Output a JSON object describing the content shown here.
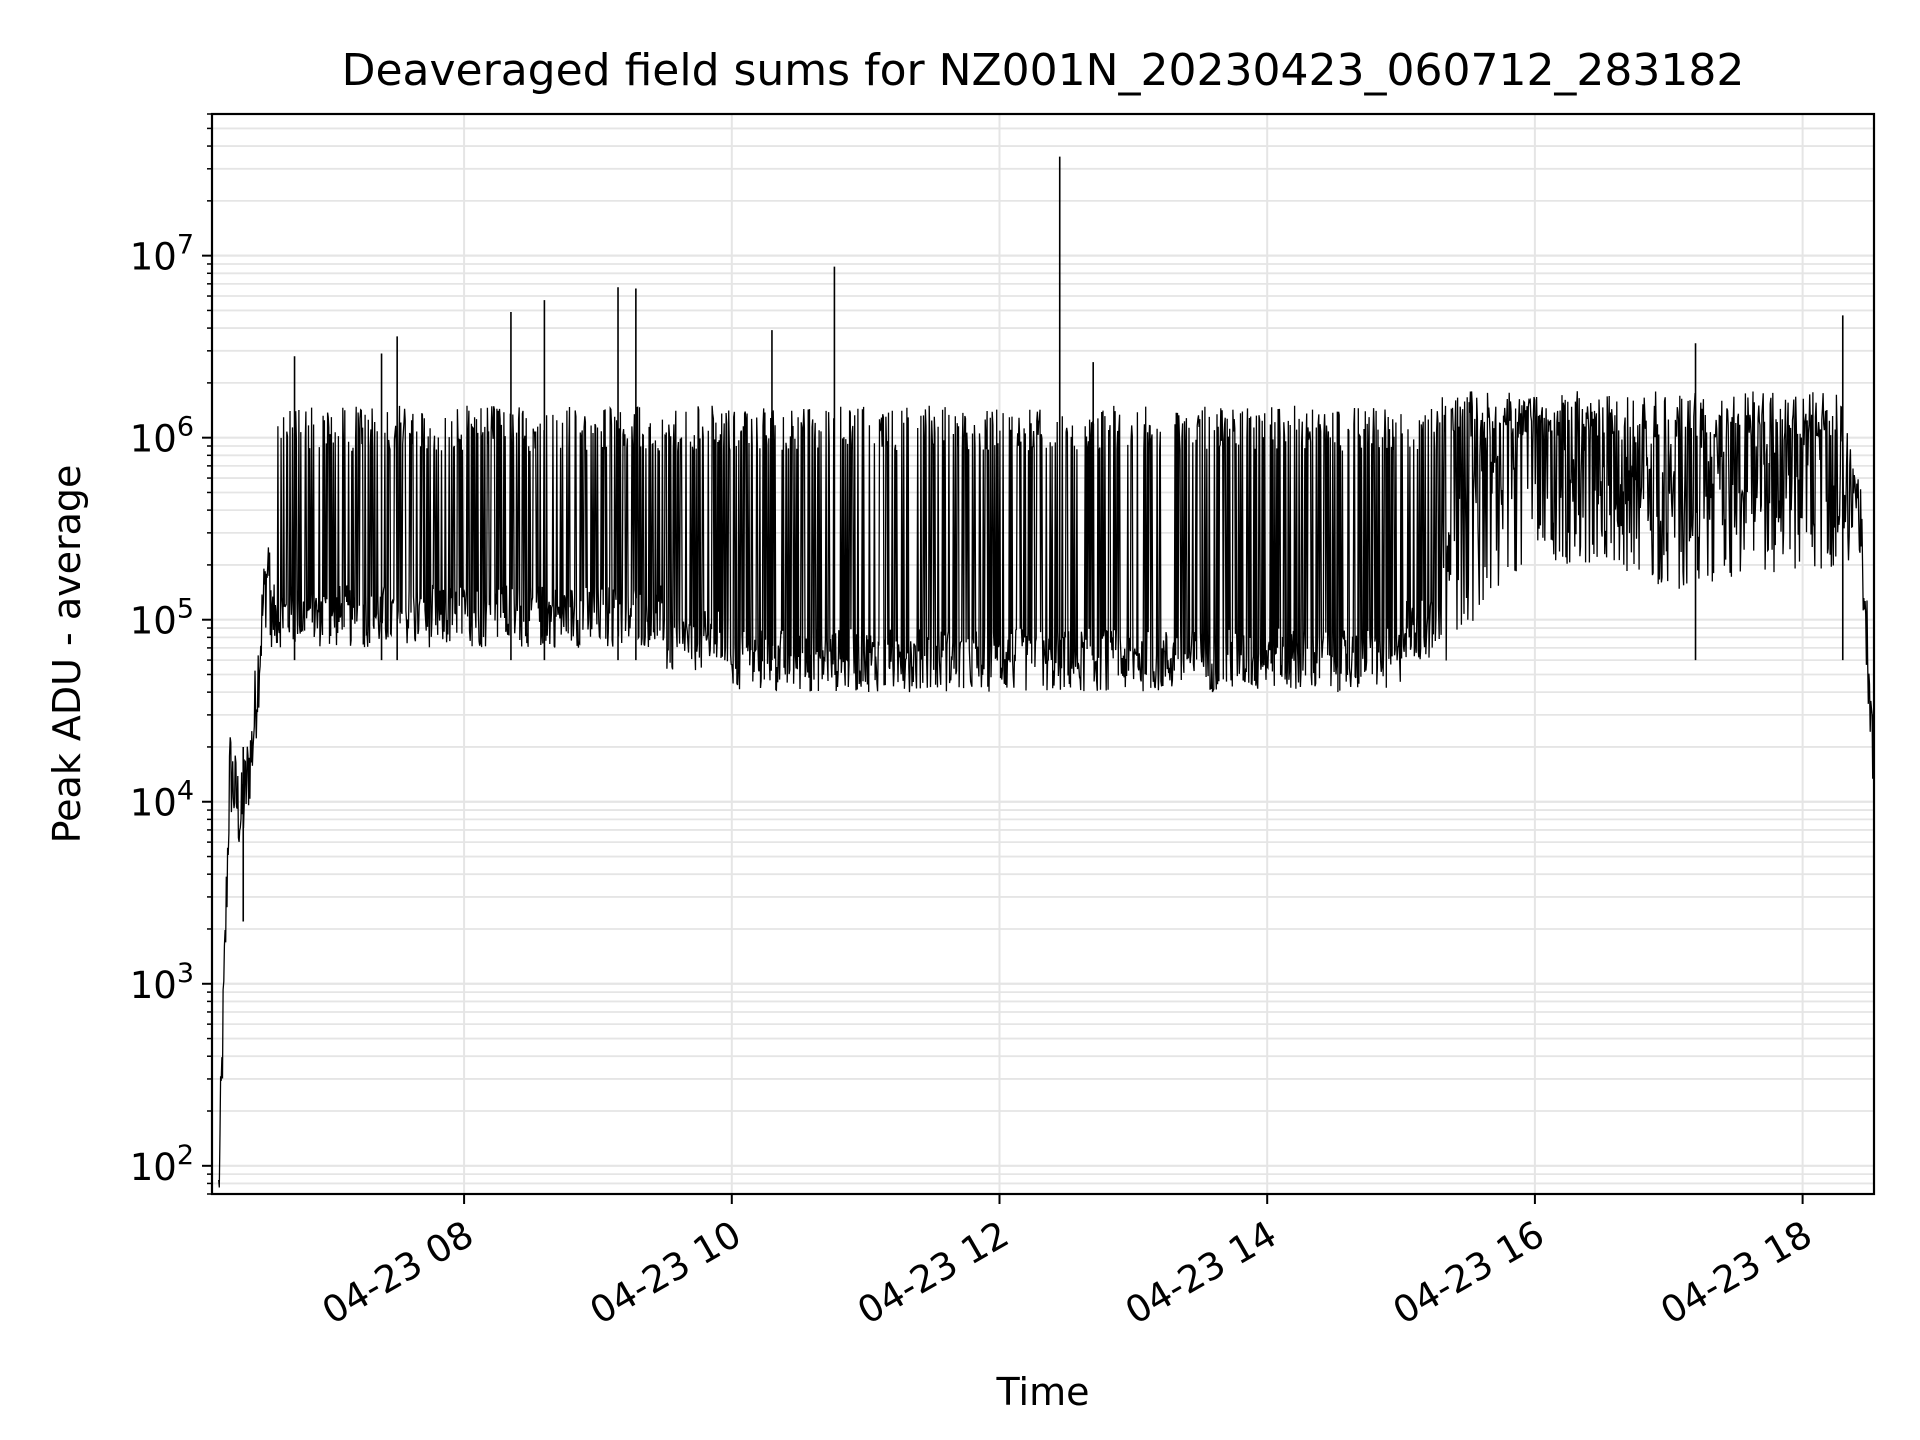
{
  "chart_data": {
    "type": "line",
    "title": "Deaveraged field sums for NZ001N_20230423_060712_283182",
    "xlabel": "Time",
    "ylabel": "Peak ADU - average",
    "yscale": "log",
    "ylim": [
      70,
      60000000
    ],
    "xlim": [
      "2023-04-23 06:07",
      "2023-04-23 18:32"
    ],
    "grid": true,
    "line_color": "#000000",
    "grid_color": "#e5e5e5",
    "x_ticks": [
      {
        "value": "2023-04-23 08:00",
        "label": "04-23 08"
      },
      {
        "value": "2023-04-23 10:00",
        "label": "04-23 10"
      },
      {
        "value": "2023-04-23 12:00",
        "label": "04-23 12"
      },
      {
        "value": "2023-04-23 14:00",
        "label": "04-23 14"
      },
      {
        "value": "2023-04-23 16:00",
        "label": "04-23 16"
      },
      {
        "value": "2023-04-23 18:00",
        "label": "04-23 18"
      }
    ],
    "y_ticks": [
      {
        "value": 100,
        "base": "10",
        "exp": "2"
      },
      {
        "value": 1000,
        "base": "10",
        "exp": "3"
      },
      {
        "value": 10000,
        "base": "10",
        "exp": "4"
      },
      {
        "value": 100000,
        "base": "10",
        "exp": "5"
      },
      {
        "value": 1000000,
        "base": "10",
        "exp": "6"
      },
      {
        "value": 10000000,
        "base": "10",
        "exp": "7"
      }
    ],
    "series": [
      {
        "x": [
          "2023-04-23 06:10",
          "2023-04-23 06:15",
          "2023-04-23 06:20",
          "2023-04-23 06:25",
          "2023-04-23 06:30",
          "2023-04-23 06:35",
          "2023-04-23 06:40",
          "2023-04-23 06:45",
          "2023-04-23 06:50",
          "2023-04-23 06:55",
          "2023-04-23 07:00",
          "2023-04-23 07:15",
          "2023-04-23 07:30",
          "2023-04-23 07:45",
          "2023-04-23 08:00",
          "2023-04-23 08:20",
          "2023-04-23 08:40",
          "2023-04-23 09:00",
          "2023-04-23 09:20",
          "2023-04-23 09:40",
          "2023-04-23 10:00",
          "2023-04-23 10:30",
          "2023-04-23 11:00",
          "2023-04-23 11:30",
          "2023-04-23 12:00",
          "2023-04-23 12:30",
          "2023-04-23 13:00",
          "2023-04-23 13:30",
          "2023-04-23 14:00",
          "2023-04-23 14:30",
          "2023-04-23 15:00",
          "2023-04-23 15:20",
          "2023-04-23 15:40",
          "2023-04-23 16:00",
          "2023-04-23 16:20",
          "2023-04-23 16:40",
          "2023-04-23 17:00",
          "2023-04-23 17:20",
          "2023-04-23 17:40",
          "2023-04-23 18:00",
          "2023-04-23 18:15",
          "2023-04-23 18:25",
          "2023-04-23 18:32"
        ],
        "values": [
          70,
          15000,
          8000,
          20000,
          120000,
          400000,
          700000,
          500000,
          300000,
          250000,
          200000,
          180000,
          200000,
          220000,
          220000,
          210000,
          200000,
          180000,
          150000,
          110000,
          90000,
          70000,
          60000,
          55000,
          52000,
          50000,
          50000,
          55000,
          55000,
          60000,
          90000,
          150000,
          400000,
          600000,
          550000,
          500000,
          400000,
          450000,
          500000,
          500000,
          500000,
          500000,
          18000
        ]
      }
    ],
    "spikes": [
      {
        "x": "2023-04-23 06:21",
        "y": 2200
      },
      {
        "x": "2023-04-23 06:44",
        "y": 2800000
      },
      {
        "x": "2023-04-23 07:23",
        "y": 2900000
      },
      {
        "x": "2023-04-23 07:30",
        "y": 3600000
      },
      {
        "x": "2023-04-23 08:21",
        "y": 4900000
      },
      {
        "x": "2023-04-23 08:36",
        "y": 5700000
      },
      {
        "x": "2023-04-23 09:09",
        "y": 6700000
      },
      {
        "x": "2023-04-23 09:17",
        "y": 6600000
      },
      {
        "x": "2023-04-23 10:18",
        "y": 3900000
      },
      {
        "x": "2023-04-23 10:46",
        "y": 8700000
      },
      {
        "x": "2023-04-23 12:27",
        "y": 35000000
      },
      {
        "x": "2023-04-23 12:42",
        "y": 2600000
      },
      {
        "x": "2023-04-23 17:12",
        "y": 3300000
      },
      {
        "x": "2023-04-23 18:18",
        "y": 4700000
      }
    ]
  }
}
